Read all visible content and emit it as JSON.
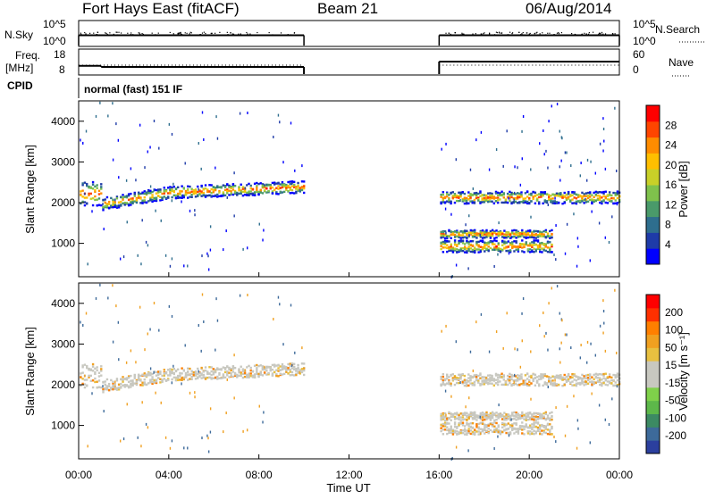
{
  "header": {
    "site": "Fort Hays East (fitACF)",
    "beam": "Beam 21",
    "date": "06/Aug/2014"
  },
  "panels": {
    "nsky_label": "N.Sky",
    "nsearch_label": "N.Search",
    "freq_label_1": "Freq.",
    "freq_label_2": "[MHz]",
    "nave_label": "Nave",
    "cpid_label": "CPID",
    "cpid_value": "normal (fast) 151 IF",
    "nsky_ticks": [
      "10^5",
      "10^0"
    ],
    "nsearch_ticks": [
      "10^5",
      "10^0"
    ],
    "freq_ticks": [
      "18",
      "8"
    ],
    "nave_ticks": [
      "60",
      "0"
    ]
  },
  "power_colorbar": {
    "label": "Power [dB]",
    "ticks": [
      "28",
      "24",
      "20",
      "16",
      "12",
      "8",
      "4"
    ],
    "colors": [
      "#0000ff",
      "#1e3ba8",
      "#2e6e8e",
      "#4a9a6a",
      "#7fc24c",
      "#c8d028",
      "#ffbf00",
      "#ff8c00",
      "#ff4500",
      "#ff0000"
    ]
  },
  "velocity_colorbar": {
    "label": "Velocity [m s⁻¹]",
    "ticks": [
      "200",
      "100",
      "50",
      "15",
      "-15",
      "-50",
      "-100",
      "-200"
    ],
    "colors": [
      "#2b3f9e",
      "#3d6a9a",
      "#3c8a63",
      "#5db84a",
      "#7fd14a",
      "#c8c8c0",
      "#c8c8c0",
      "#e8c040",
      "#f0a020",
      "#ff7f00",
      "#ff3000",
      "#ff0000"
    ]
  },
  "chart_data": {
    "type": "heatmap",
    "xlabel": "Time UT",
    "ylabel": "Slant Range [km]",
    "x_ticks": [
      "00:00",
      "04:00",
      "08:00",
      "12:00",
      "16:00",
      "20:00",
      "00:00"
    ],
    "y_ticks": [
      "1000",
      "2000",
      "3000",
      "4000"
    ],
    "xlim": [
      0,
      24
    ],
    "ylim": [
      180,
      4500
    ],
    "data_gap": [
      10,
      16
    ],
    "power_scatter_bands": [
      {
        "t_start": 0,
        "t_end": 1,
        "range_center": 2250,
        "width": 600
      },
      {
        "t_start": 1,
        "t_end": 10,
        "range_center": 2200,
        "width": 300
      },
      {
        "t_start": 16,
        "t_end": 24,
        "range_center": 2150,
        "width": 300
      },
      {
        "t_start": 16,
        "t_end": 21,
        "range_center": 1250,
        "width": 200
      },
      {
        "t_start": 16,
        "t_end": 21,
        "range_center": 950,
        "width": 300
      }
    ],
    "nsky_level_fraction": 0.5,
    "freq_mhz": [
      {
        "t_start": 0,
        "t_end": 1,
        "value": 11
      },
      {
        "t_start": 1,
        "t_end": 10,
        "value": 10.5
      },
      {
        "t_start": 16,
        "t_end": 24,
        "value": 13
      }
    ],
    "nave_level": 20
  }
}
